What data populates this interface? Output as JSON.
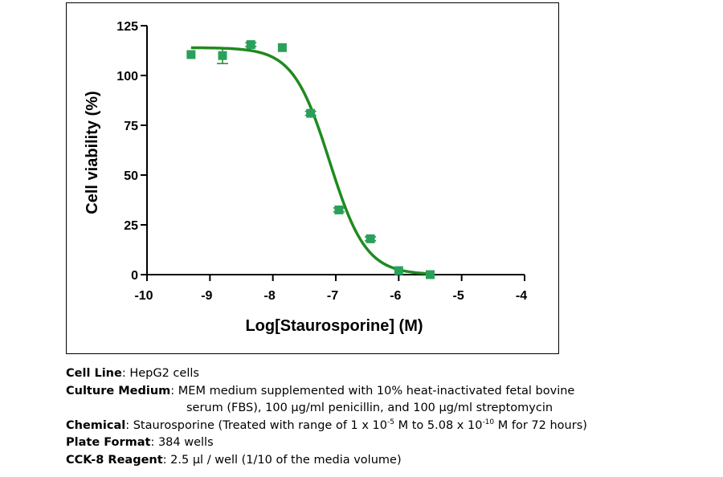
{
  "chart_data": {
    "type": "scatter",
    "xlabel": "Log[Staurosporine] (M)",
    "ylabel": "Cell viability (%)",
    "xlim": [
      -10,
      -4
    ],
    "ylim": [
      0,
      125
    ],
    "x_ticks": [
      -10,
      -9,
      -8,
      -7,
      -6,
      -5,
      -4
    ],
    "y_ticks": [
      0,
      25,
      50,
      75,
      100,
      125
    ],
    "colors": {
      "series": "#2aa05a",
      "fit": "#1f8a1f"
    },
    "series": [
      {
        "points": [
          {
            "x": -9.3,
            "y": 110.5,
            "err": 0
          },
          {
            "x": -8.8,
            "y": 110.0,
            "err": 4
          },
          {
            "x": -8.35,
            "y": 115.5,
            "err": 1
          },
          {
            "x": -7.85,
            "y": 114.0,
            "err": 0
          },
          {
            "x": -7.4,
            "y": 81.0,
            "err": 1
          },
          {
            "x": -6.95,
            "y": 32.5,
            "err": 1
          },
          {
            "x": -6.45,
            "y": 18.0,
            "err": 1
          },
          {
            "x": -6.0,
            "y": 2.0,
            "err": 0
          },
          {
            "x": -5.5,
            "y": 0.0,
            "err": 0
          }
        ]
      }
    ],
    "fit": {
      "x_range": [
        -9.3,
        -5.5
      ],
      "top": 114,
      "bottom": 0,
      "log_ic50": -7.1,
      "hill": -1.5
    }
  },
  "caption": {
    "cell_line_label": "Cell Line",
    "cell_line_value": ": HepG2 cells",
    "culture_label": "Culture Medium",
    "culture_value": ": MEM medium supplemented with 10% heat-inactivated fetal bovine",
    "culture_value_2": "serum (FBS), 100 µg/ml penicillin, and 100 µg/ml streptomycin",
    "chemical_label": "Chemical",
    "chemical_value_a": ": Staurosporine (Treated with range of 1 x 10",
    "chemical_exp_a": "-5",
    "chemical_value_b": " M to 5.08 x 10",
    "chemical_exp_b": "-10",
    "chemical_value_c": " M for 72 hours)",
    "plate_label": "Plate Format",
    "plate_value": ": 384 wells",
    "reagent_label": "CCK-8 Reagent",
    "reagent_value": ": 2.5 µl / well (1/10 of the media volume)"
  }
}
